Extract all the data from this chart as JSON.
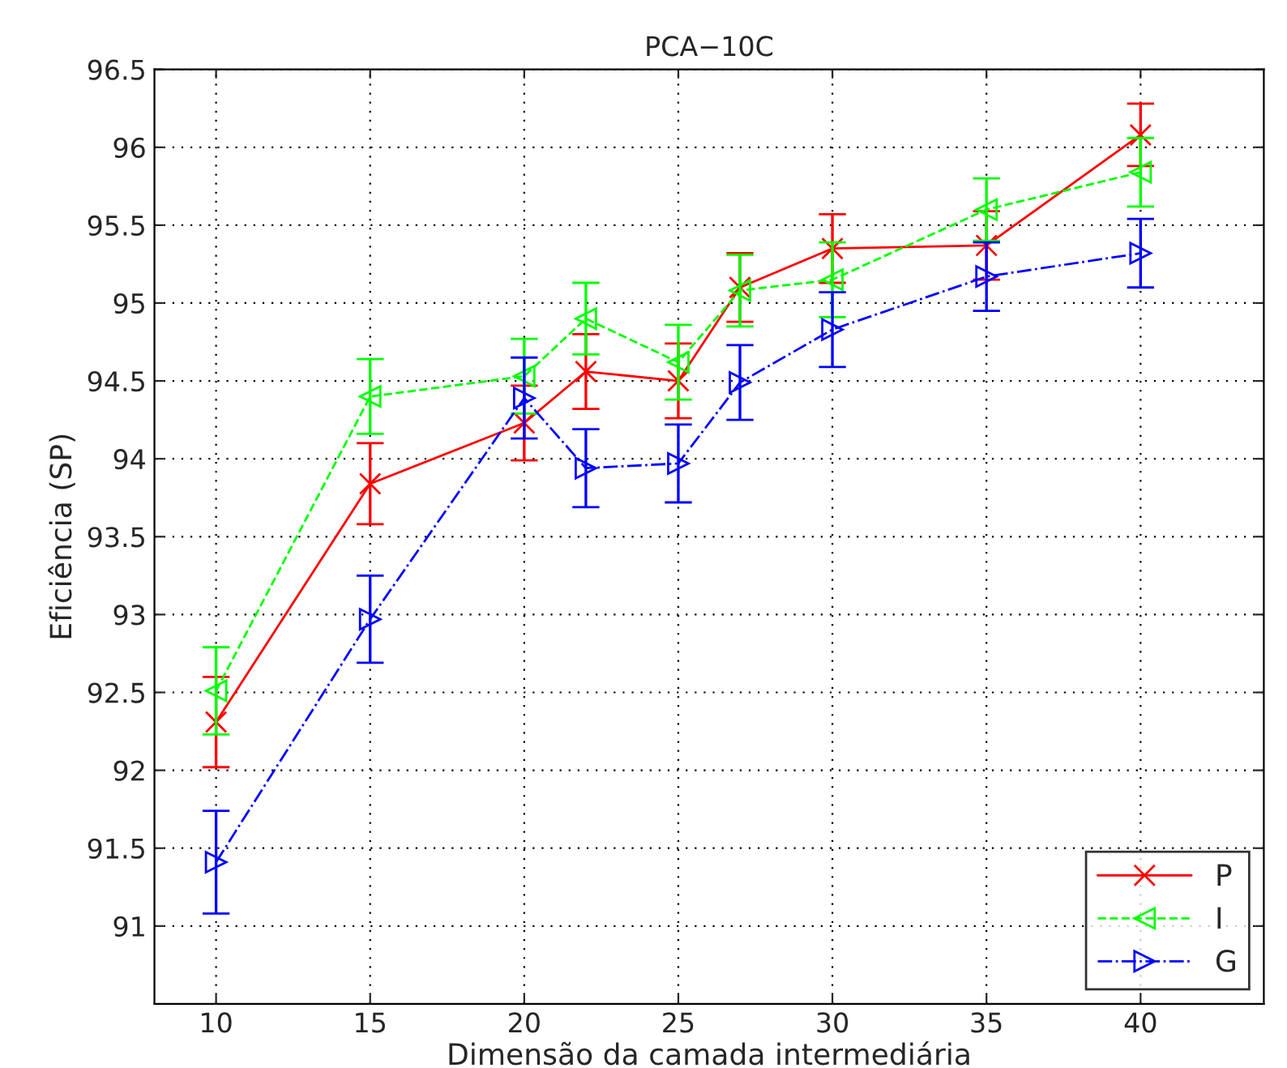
{
  "chart_data": {
    "type": "line",
    "title": "PCA−10C",
    "xlabel": "Dimensão da camada intermediária",
    "ylabel": "Eficiência (SP)",
    "x": [
      10,
      15,
      20,
      22,
      25,
      27,
      30,
      35,
      40
    ],
    "xlim": [
      8,
      44
    ],
    "xticks": [
      10,
      15,
      20,
      25,
      30,
      35,
      40
    ],
    "ylim": [
      90.5,
      96.5
    ],
    "yticks": [
      91,
      91.5,
      92,
      92.5,
      93,
      93.5,
      94,
      94.5,
      95,
      95.5,
      96,
      96.5
    ],
    "grid": true,
    "legend": "bottom right",
    "series": [
      {
        "name": "P",
        "color": "#ff0000",
        "marker": "cross",
        "line_style": "solid",
        "values": [
          92.31,
          93.84,
          94.23,
          94.56,
          94.5,
          95.1,
          95.35,
          95.37,
          96.08
        ],
        "errors": [
          0.29,
          0.26,
          0.24,
          0.24,
          0.24,
          0.22,
          0.22,
          0.22,
          0.2
        ]
      },
      {
        "name": "I",
        "color": "#00ff00",
        "marker": "triangle_left",
        "line_style": "dashed",
        "values": [
          92.51,
          94.4,
          94.53,
          94.9,
          94.62,
          95.08,
          95.15,
          95.6,
          95.84
        ],
        "errors": [
          0.28,
          0.24,
          0.24,
          0.23,
          0.24,
          0.23,
          0.24,
          0.2,
          0.22
        ]
      },
      {
        "name": "G",
        "color": "#0000ff",
        "marker": "triangle_right",
        "line_style": "dashdot",
        "values": [
          91.41,
          92.97,
          94.39,
          93.94,
          93.97,
          94.49,
          94.83,
          95.17,
          95.32
        ],
        "errors": [
          0.33,
          0.28,
          0.26,
          0.25,
          0.25,
          0.24,
          0.24,
          0.22,
          0.22
        ]
      }
    ]
  }
}
